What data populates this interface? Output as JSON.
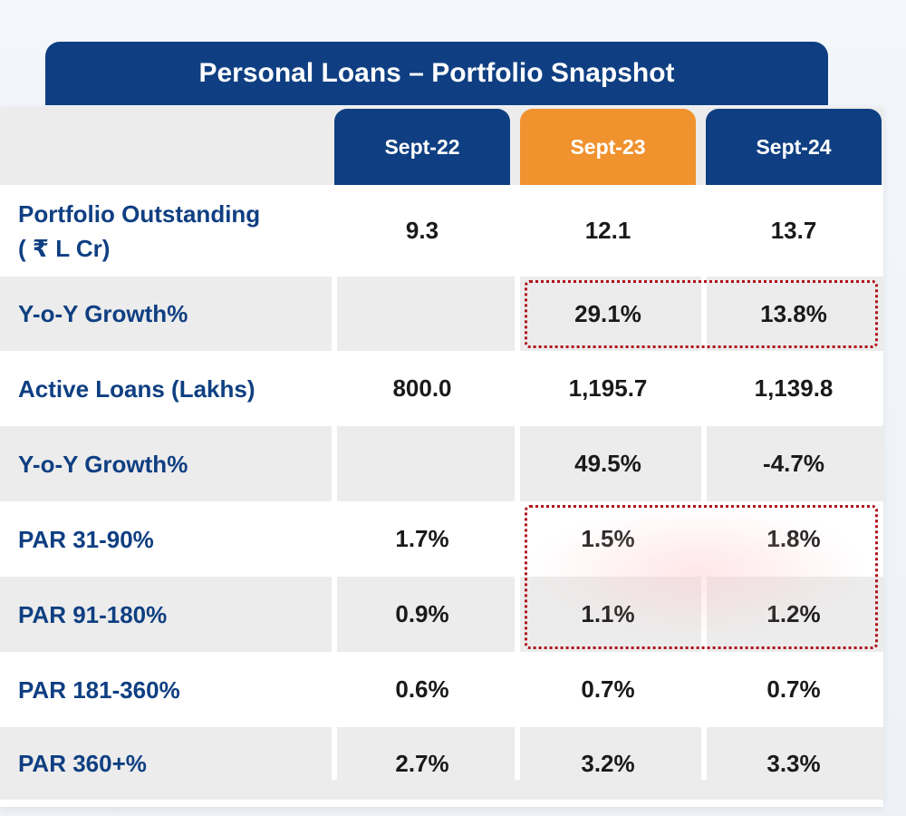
{
  "title": "Personal Loans – Portfolio Snapshot",
  "colors": {
    "header_blue": "#0f3f82",
    "header_orange": "#f0922e",
    "highlight_border": "#b0121c"
  },
  "chart_data": {
    "type": "table",
    "title": "Personal Loans – Portfolio Snapshot",
    "columns": [
      {
        "label": "Sept-22",
        "color": "#0f3f82"
      },
      {
        "label": "Sept-23",
        "color": "#f0922e"
      },
      {
        "label": "Sept-24",
        "color": "#0f3f82"
      }
    ],
    "rows": [
      {
        "label": "Portfolio Outstanding\n( ₹ L Cr)",
        "values": [
          "9.3",
          "12.1",
          "13.7"
        ]
      },
      {
        "label": "Y-o-Y Growth%",
        "values": [
          "",
          "29.1%",
          "13.8%"
        ]
      },
      {
        "label": "Active Loans (Lakhs)",
        "values": [
          "800.0",
          "1,195.7",
          "1,139.8"
        ]
      },
      {
        "label": "Y-o-Y Growth%",
        "values": [
          "",
          "49.5%",
          "-4.7%"
        ]
      },
      {
        "label": "PAR 31-90%",
        "values": [
          "1.7%",
          "1.5%",
          "1.8%"
        ]
      },
      {
        "label": "PAR 91-180%",
        "values": [
          "0.9%",
          "1.1%",
          "1.2%"
        ]
      },
      {
        "label": "PAR 181-360%",
        "values": [
          "0.6%",
          "0.7%",
          "0.7%"
        ]
      },
      {
        "label": "PAR 360+%",
        "values": [
          "2.7%",
          "3.2%",
          "3.3%"
        ]
      }
    ],
    "highlighted": [
      {
        "rows": [
          1,
          1
        ],
        "columns": [
          1,
          2
        ]
      },
      {
        "rows": [
          4,
          5
        ],
        "columns": [
          1,
          2
        ]
      }
    ]
  }
}
